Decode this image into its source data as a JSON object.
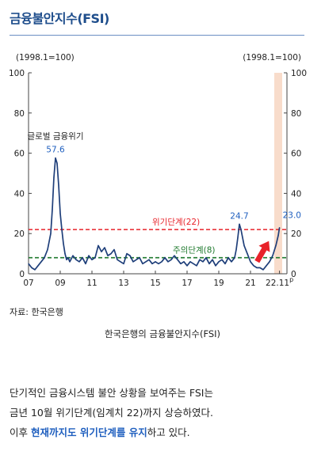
{
  "header": {
    "title": "금융불안지수(FSI)"
  },
  "chart_data": {
    "type": "line",
    "title": "",
    "left_axis_note": "(1998.1=100)",
    "right_axis_note": "(1998.1=100)",
    "ylim": [
      0,
      100
    ],
    "y_ticks": [
      0,
      20,
      40,
      60,
      80,
      100
    ],
    "y_tick_labels": [
      "0",
      "20",
      "40",
      "60",
      "80",
      "100"
    ],
    "x_tick_labels": [
      "07",
      "09",
      "11",
      "13",
      "15",
      "17",
      "19",
      "21",
      "22.11"
    ],
    "x_tick_positions": [
      2007,
      2009,
      2011,
      2013,
      2015,
      2017,
      2019,
      2021,
      2022.83
    ],
    "x_tick_suffix": "p",
    "xlim": [
      2007,
      2023.3
    ],
    "shaded_region": [
      2022.5,
      2023.0
    ],
    "series": [
      {
        "name": "",
        "color": "#1f3f7a",
        "x": [
          2007.0,
          2007.2,
          2007.4,
          2007.6,
          2007.8,
          2008.0,
          2008.2,
          2008.4,
          2008.5,
          2008.6,
          2008.7,
          2008.8,
          2008.9,
          2009.0,
          2009.1,
          2009.2,
          2009.3,
          2009.4,
          2009.5,
          2009.6,
          2009.8,
          2010.0,
          2010.2,
          2010.4,
          2010.6,
          2010.8,
          2011.0,
          2011.2,
          2011.4,
          2011.6,
          2011.8,
          2012.0,
          2012.2,
          2012.4,
          2012.6,
          2012.8,
          2013.0,
          2013.2,
          2013.4,
          2013.6,
          2013.8,
          2014.0,
          2014.2,
          2014.4,
          2014.6,
          2014.8,
          2015.0,
          2015.2,
          2015.4,
          2015.6,
          2015.8,
          2016.0,
          2016.2,
          2016.4,
          2016.6,
          2016.8,
          2017.0,
          2017.2,
          2017.4,
          2017.6,
          2017.8,
          2018.0,
          2018.2,
          2018.4,
          2018.6,
          2018.8,
          2019.0,
          2019.2,
          2019.4,
          2019.6,
          2019.8,
          2020.0,
          2020.1,
          2020.2,
          2020.3,
          2020.4,
          2020.6,
          2020.8,
          2021.0,
          2021.2,
          2021.4,
          2021.6,
          2021.8,
          2022.0,
          2022.2,
          2022.4,
          2022.6,
          2022.75,
          2022.83
        ],
        "values": [
          5,
          3,
          2,
          4,
          6,
          8,
          12,
          20,
          32,
          48,
          57.6,
          55,
          44,
          30,
          22,
          15,
          10,
          7,
          8,
          6,
          9,
          7,
          6,
          8,
          5,
          9,
          7,
          8,
          14,
          11,
          13,
          9,
          10,
          12,
          7,
          6,
          5,
          10,
          9,
          6,
          7,
          8,
          5,
          6,
          7,
          5,
          6,
          5,
          6,
          8,
          6,
          7,
          9,
          7,
          5,
          6,
          4,
          6,
          5,
          4,
          7,
          6,
          8,
          5,
          7,
          4,
          6,
          7,
          5,
          8,
          6,
          8,
          12,
          18,
          24.7,
          22,
          14,
          10,
          6,
          4,
          3,
          3,
          2,
          4,
          6,
          9,
          14,
          19,
          23.0
        ]
      }
    ],
    "thresholds": [
      {
        "name": "위기단계(22)",
        "value": 22,
        "color": "#e8232a"
      },
      {
        "name": "주의단계(8)",
        "value": 8,
        "color": "#1f7a2e"
      }
    ],
    "annotations": [
      {
        "text": "글로벌 금융위기",
        "x": 2008.7,
        "y": 57.6
      },
      {
        "text": "57.6",
        "x": 2008.7,
        "y": 57.6
      },
      {
        "text": "24.7",
        "x": 2020.3,
        "y": 24.7
      },
      {
        "text": "23.0",
        "x": 2022.83,
        "y": 23.0
      }
    ],
    "grid": false,
    "legend": "none"
  },
  "source_text": "자료: 한국은행",
  "caption": "한국은행의 금융불안지수(FSI)",
  "paragraph": {
    "line1": "단기적인 금융시스템 불안 상황을 보여주는 FSI는",
    "line2": "금년 10월 위기단계(임계치 22)까지 상승하였다.",
    "line3_pre": "이후 ",
    "line3_highlight": "현재까지도 위기단계를 유지",
    "line3_post": "하고 있다."
  }
}
